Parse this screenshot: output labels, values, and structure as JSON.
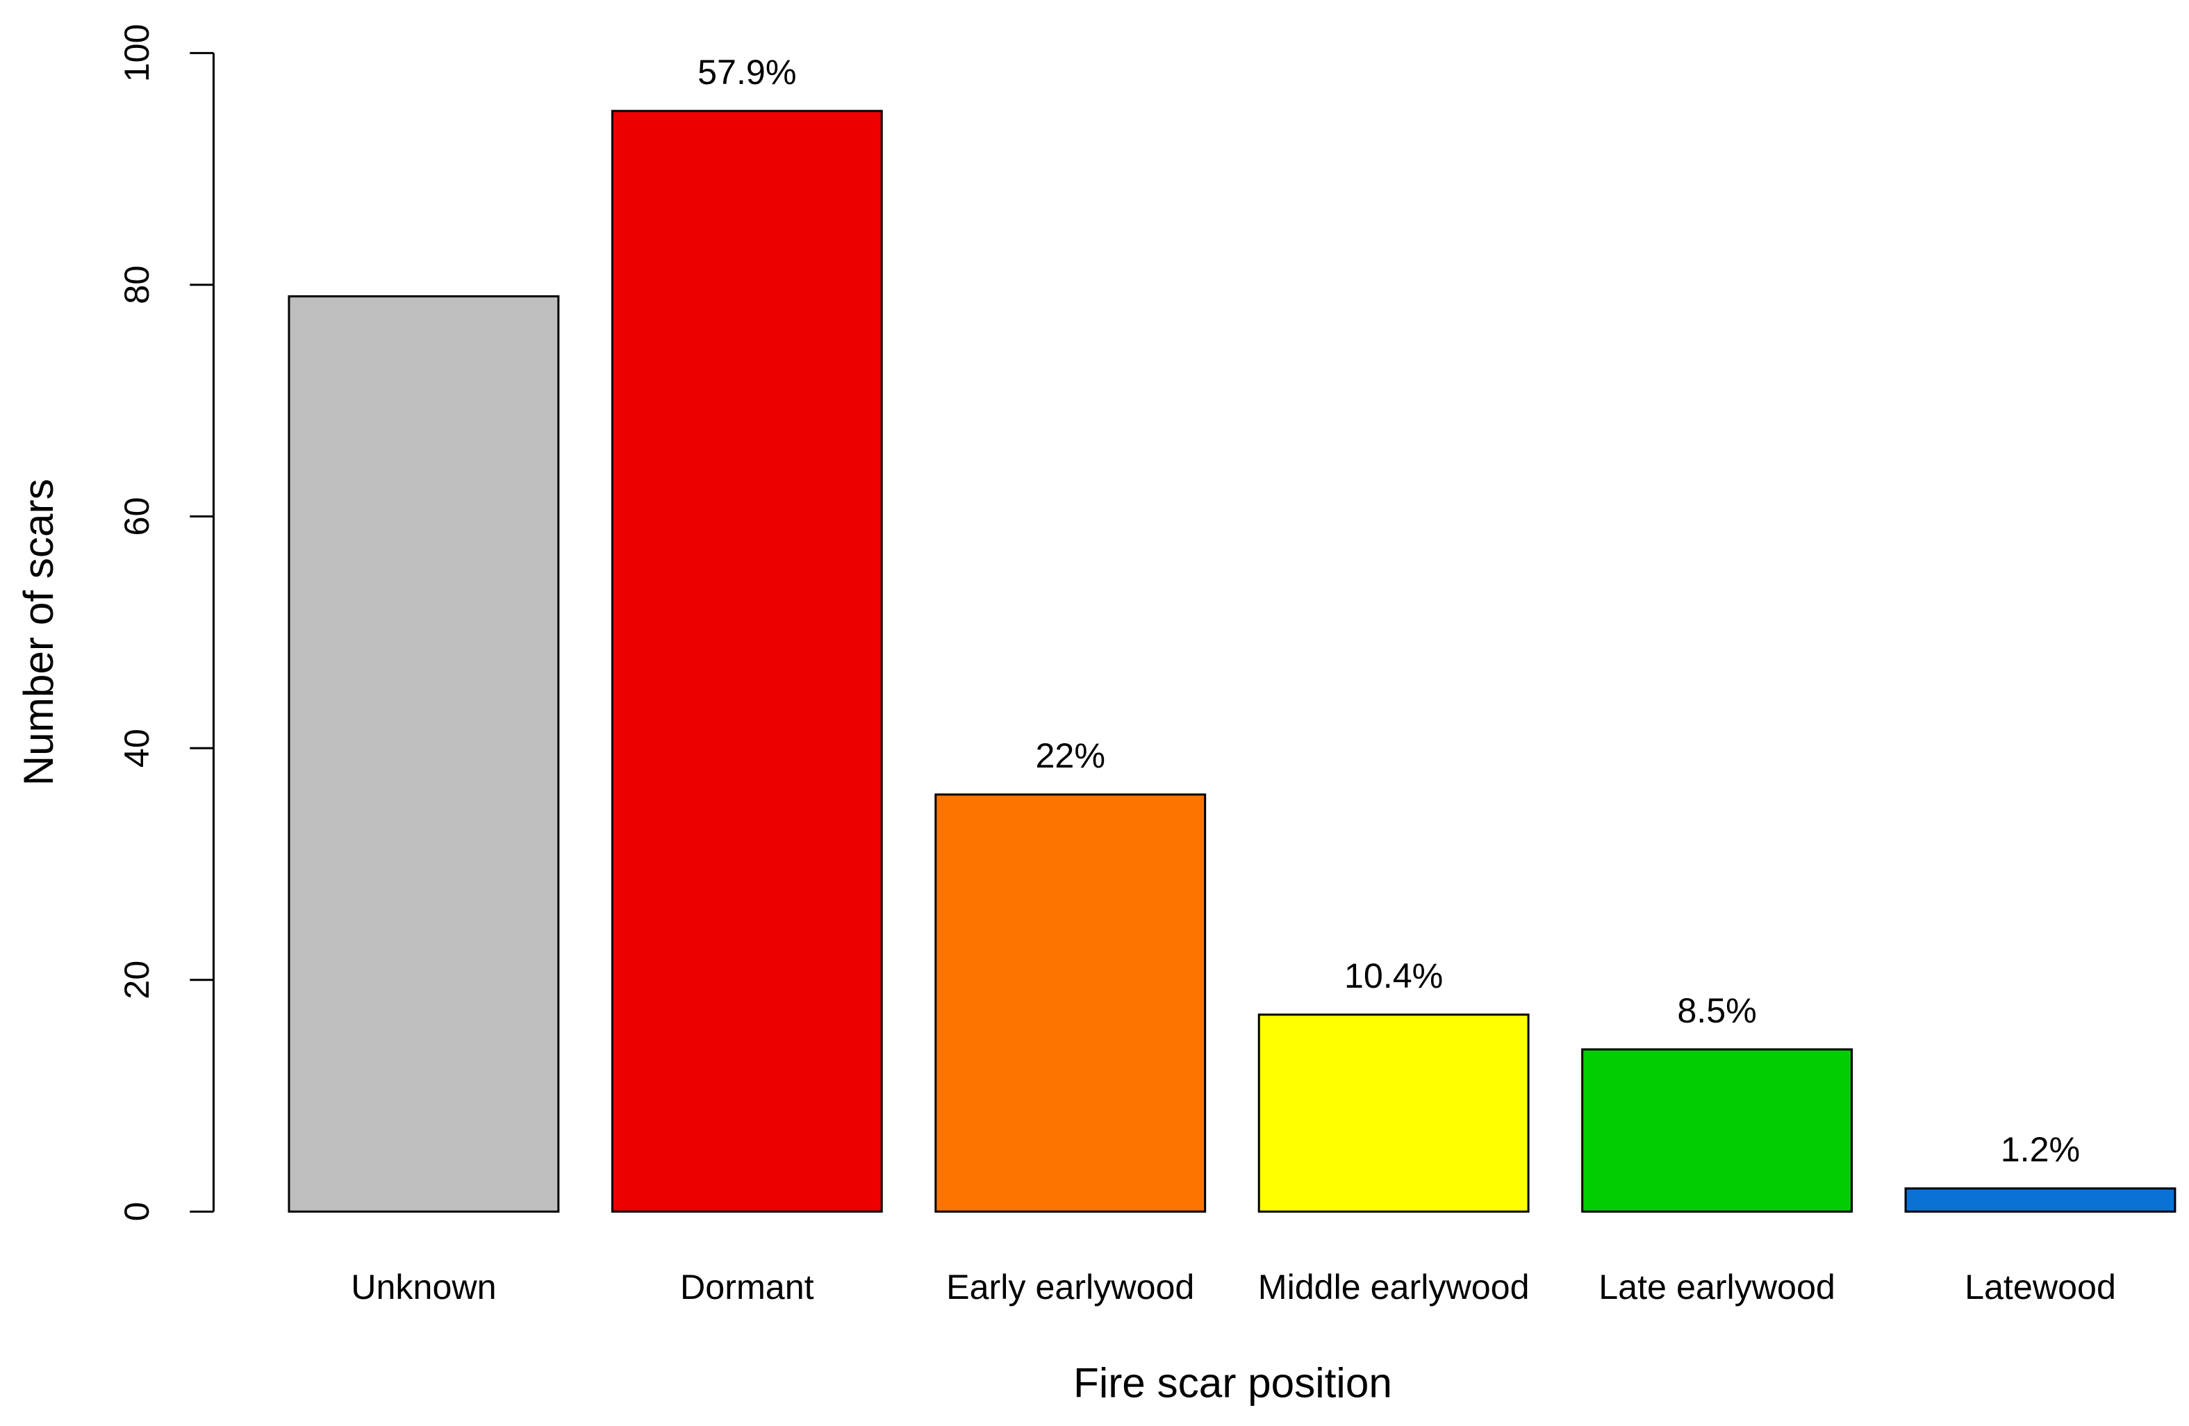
{
  "chart_data": {
    "type": "bar",
    "x_label": "Fire scar position",
    "y_label": "Number of scars",
    "categories": [
      "Unknown",
      "Dormant",
      "Early earlywood",
      "Middle earlywood",
      "Late earlywood",
      "Latewood"
    ],
    "values": [
      79,
      95,
      36,
      17,
      14,
      2
    ],
    "annotations": [
      null,
      "57.9%",
      "22%",
      "10.4%",
      "8.5%",
      "1.2%"
    ],
    "colors": [
      "#bebebe",
      "#ee0000",
      "#ff7400",
      "#ffff00",
      "#00cd00",
      "#0a72d6"
    ],
    "ylim": [
      0,
      100
    ],
    "yticks": [
      0,
      20,
      40,
      60,
      80,
      100
    ]
  }
}
